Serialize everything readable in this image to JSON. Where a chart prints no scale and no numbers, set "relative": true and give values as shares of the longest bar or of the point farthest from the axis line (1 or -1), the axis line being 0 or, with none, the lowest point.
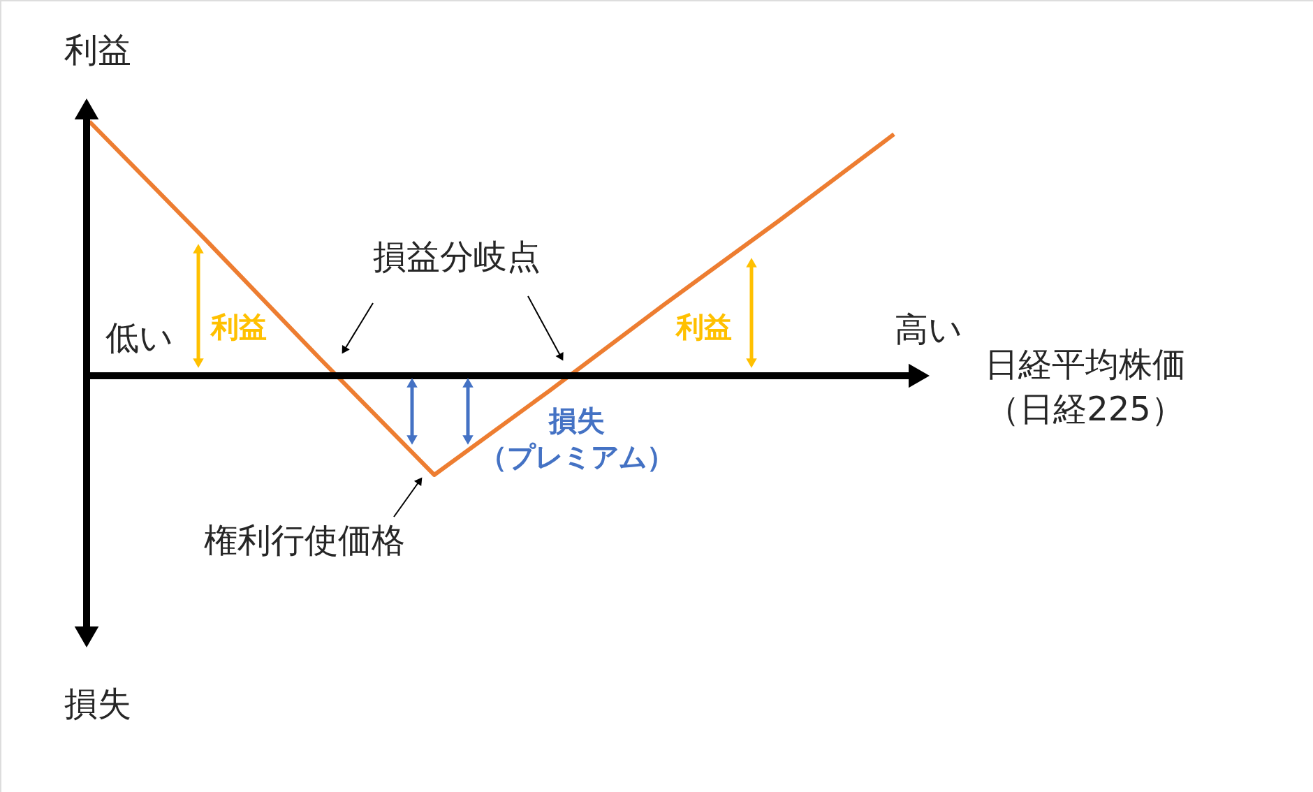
{
  "chart_data": {
    "type": "line",
    "relative": true,
    "categories": [
      null,
      null,
      null,
      null,
      null,
      null,
      null,
      null
    ],
    "series": [
      {
        "color": "#ed7d31",
        "values": [
          1.0,
          0.54,
          0.07,
          -0.39,
          -0.06,
          0.28,
          0.61,
          0.95
        ]
      }
    ],
    "xlabel": "日経平均株価（日経225）",
    "annotations": [
      "利益",
      "損失",
      "低い",
      "高い",
      "損益分岐点",
      "利益",
      "利益",
      "損失（プレミアム）",
      "権利行使価格"
    ]
  }
}
